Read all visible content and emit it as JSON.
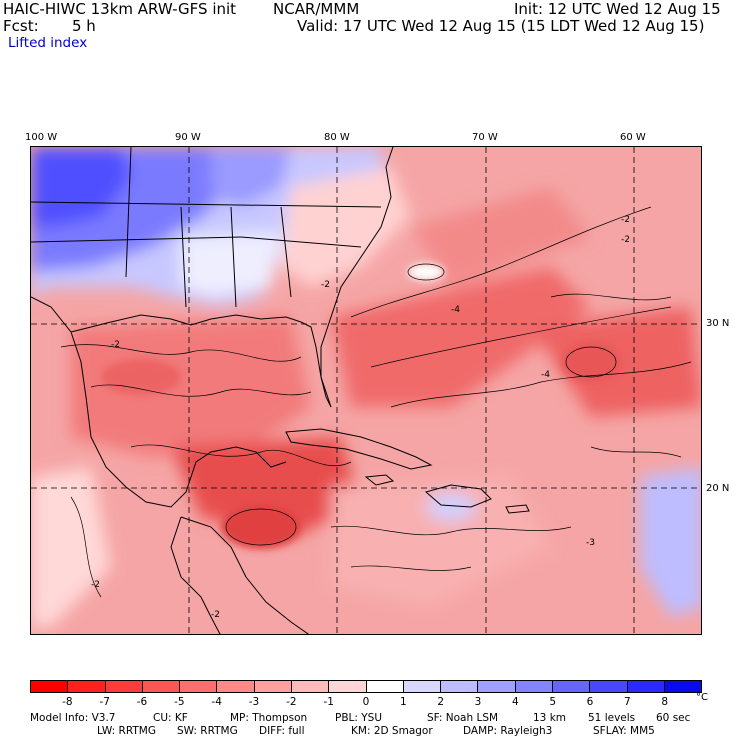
{
  "header": {
    "model": "HAIC-HIWC 13km ARW-GFS init",
    "center": "NCAR/MMM",
    "init": "Init: 12 UTC Wed 12 Aug 15",
    "fcst_label": "Fcst:",
    "fcst_value": "5 h",
    "valid": "Valid: 17 UTC Wed 12 Aug 15 (15 LDT Wed 12 Aug 15)",
    "field": "Lifted index"
  },
  "map": {
    "lon_labels": [
      "100 W",
      "90 W",
      "80 W",
      "70 W",
      "60 W"
    ],
    "lat_labels": [
      "30 N",
      "20 N"
    ],
    "contour_labels": [
      "-2",
      "-4",
      "-2",
      "-2",
      "-3",
      "-2",
      "-4",
      "-2",
      "-2"
    ]
  },
  "colorbar": {
    "colors": [
      "#ff0000",
      "#ff2020",
      "#ff3b3b",
      "#ff5555",
      "#ff6e6e",
      "#ff8888",
      "#ffa0a0",
      "#ffbaba",
      "#ffd6d6",
      "#ffffff",
      "#d8d8ff",
      "#bcbcff",
      "#a0a0ff",
      "#8484ff",
      "#6666ff",
      "#4848ff",
      "#2a2aff",
      "#0a0aee"
    ],
    "labels": [
      "-8",
      "-7",
      "-6",
      "-5",
      "-4",
      "-3",
      "-2",
      "-1",
      "0",
      "1",
      "2",
      "3",
      "4",
      "5",
      "6",
      "7",
      "8"
    ],
    "unit": "°C"
  },
  "footer": {
    "line1": [
      "Model Info: V3.7",
      "CU: KF",
      "MP: Thompson",
      "PBL: YSU",
      "SF: Noah LSM",
      "13 km",
      "51 levels",
      "60 sec"
    ],
    "line2": [
      "LW: RRTMG",
      "SW: RRTMG",
      "DIFF: full",
      "KM: 2D Smagor",
      "DAMP: Rayleigh3",
      "SFLAY: MM5"
    ]
  }
}
